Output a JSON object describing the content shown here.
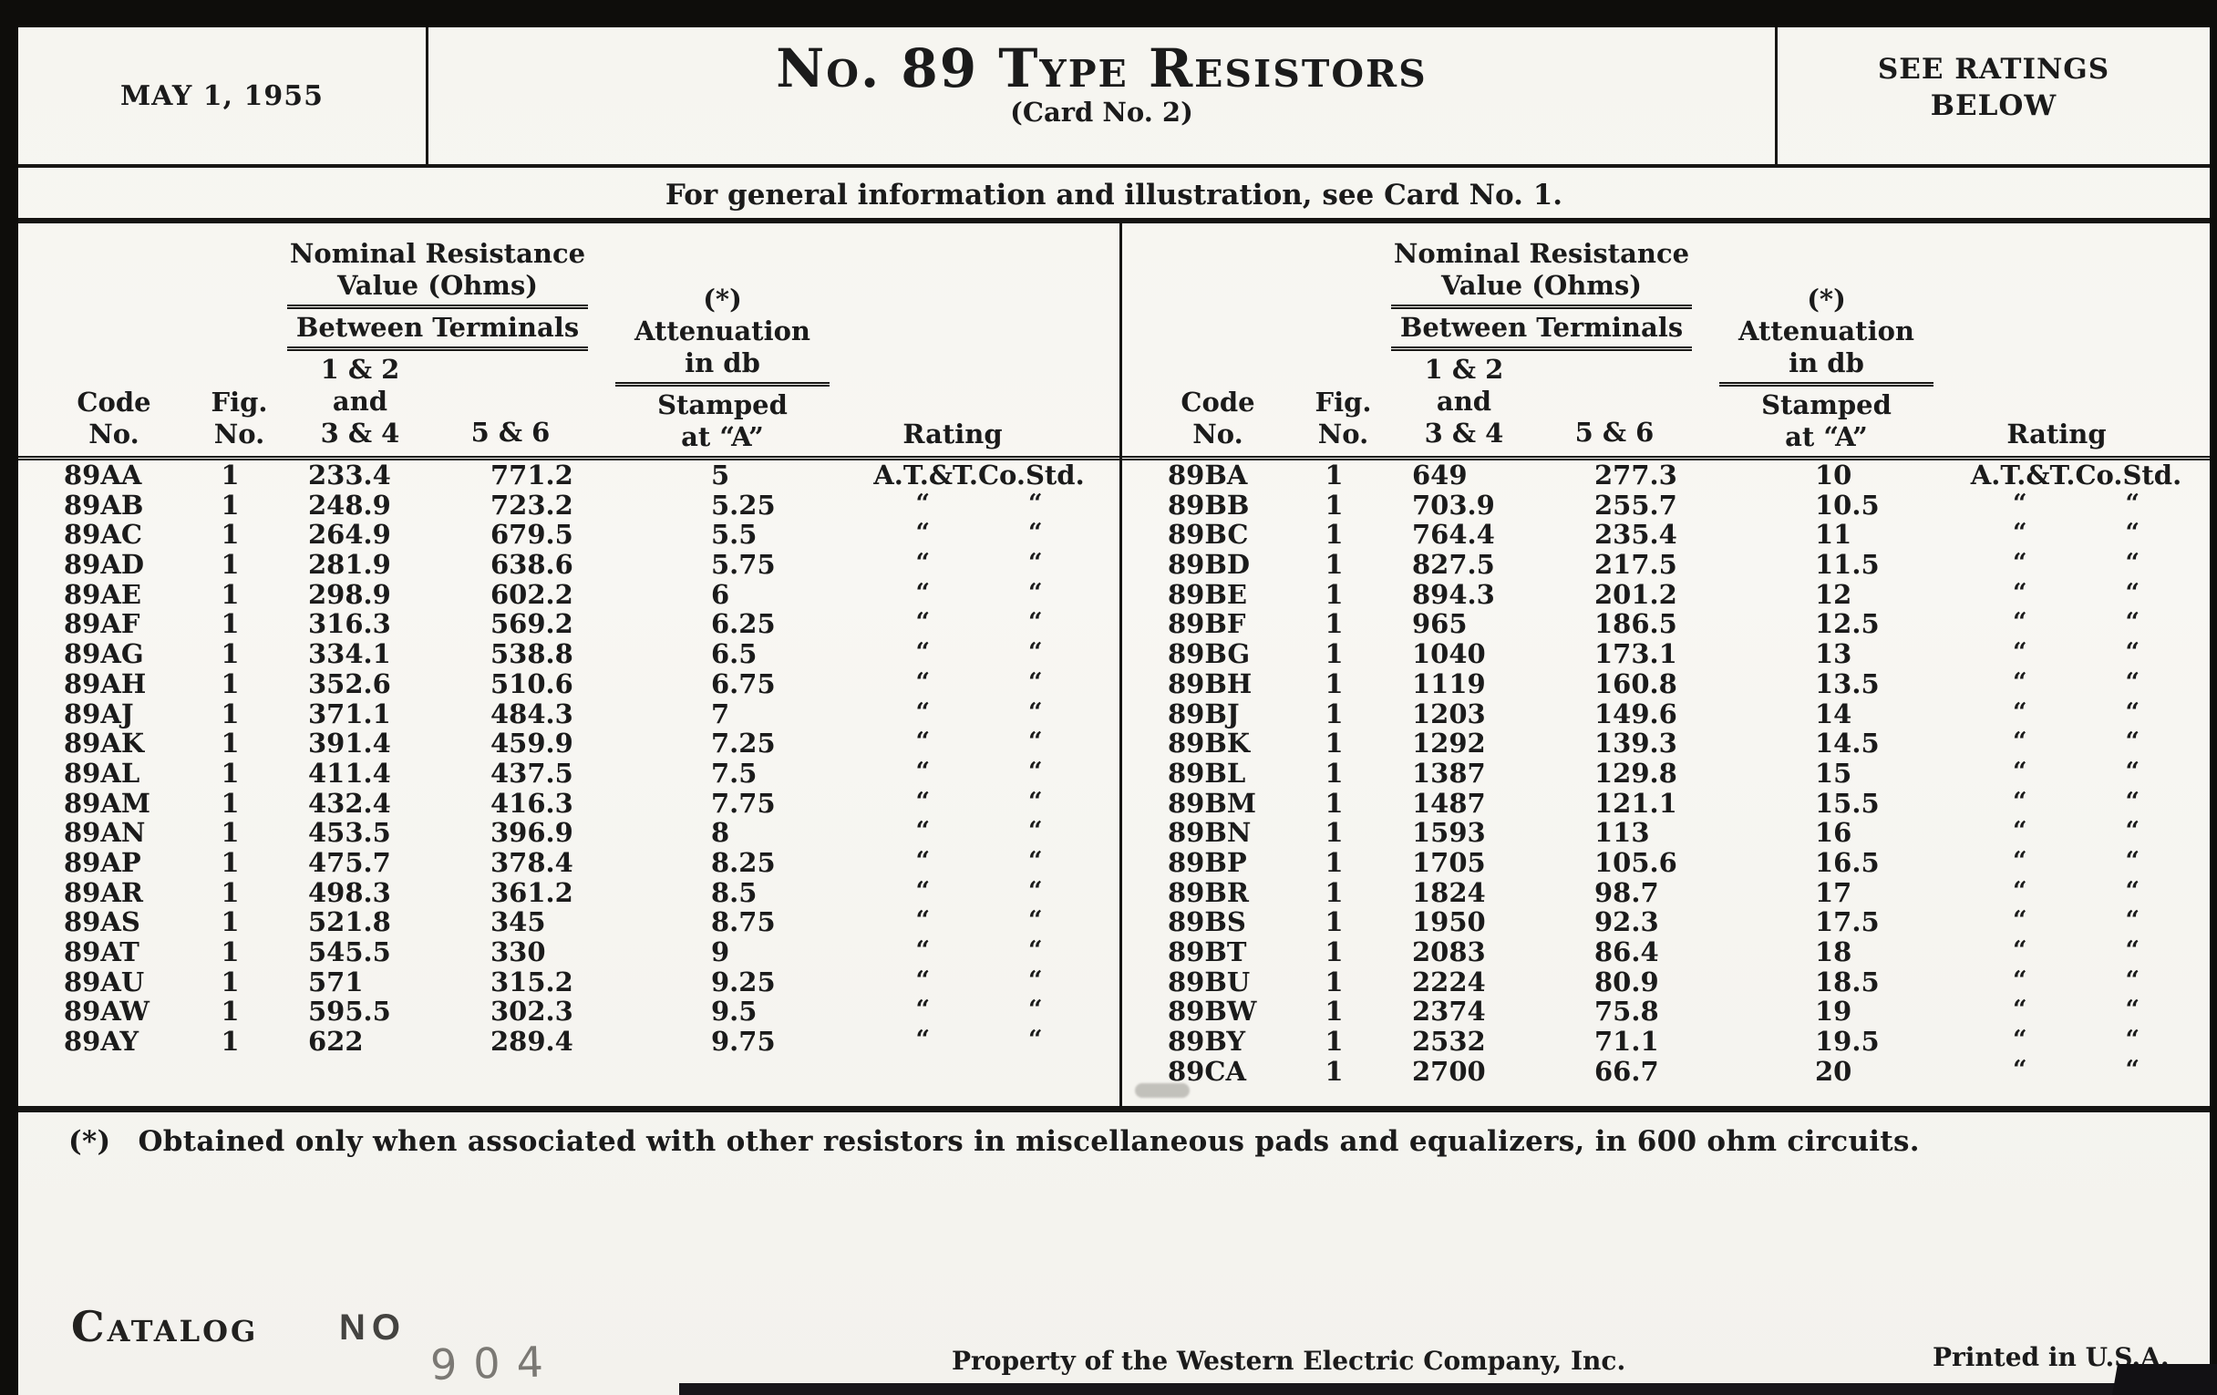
{
  "document": {
    "header": {
      "date": "MAY 1, 1955",
      "title": "No. 89 Type Resistors",
      "card_no": "(Card No. 2)",
      "ratings_note": [
        "SEE RATINGS",
        "BELOW"
      ],
      "subtitle": "For general information and illustration, see Card No. 1."
    },
    "table": {
      "headers": {
        "code": [
          "Code",
          "No."
        ],
        "fig": [
          "Fig.",
          "No."
        ],
        "nominal": [
          "Nominal Resistance",
          "Value (Ohms)"
        ],
        "between": "Between Terminals",
        "terminals_1": [
          "1 & 2",
          "and",
          "3 & 4"
        ],
        "terminals_2": "5 & 6",
        "star": "(*)",
        "attenuation": [
          "Attenuation",
          "in db"
        ],
        "stamped": [
          "Stamped",
          "at “A”"
        ],
        "rating": "Rating"
      },
      "ditto_mark": "“",
      "left_rows": [
        {
          "code": "89AA",
          "fig": "1",
          "r12_34": "233.4",
          "r56": "771.2",
          "atten_db": "5",
          "rating": "A.T.&T.Co.Std."
        },
        {
          "code": "89AB",
          "fig": "1",
          "r12_34": "248.9",
          "r56": "723.2",
          "atten_db": "5.25",
          "rating": "ditto"
        },
        {
          "code": "89AC",
          "fig": "1",
          "r12_34": "264.9",
          "r56": "679.5",
          "atten_db": "5.5",
          "rating": "ditto"
        },
        {
          "code": "89AD",
          "fig": "1",
          "r12_34": "281.9",
          "r56": "638.6",
          "atten_db": "5.75",
          "rating": "ditto"
        },
        {
          "code": "89AE",
          "fig": "1",
          "r12_34": "298.9",
          "r56": "602.2",
          "atten_db": "6",
          "rating": "ditto"
        },
        {
          "code": "89AF",
          "fig": "1",
          "r12_34": "316.3",
          "r56": "569.2",
          "atten_db": "6.25",
          "rating": "ditto"
        },
        {
          "code": "89AG",
          "fig": "1",
          "r12_34": "334.1",
          "r56": "538.8",
          "atten_db": "6.5",
          "rating": "ditto"
        },
        {
          "code": "89AH",
          "fig": "1",
          "r12_34": "352.6",
          "r56": "510.6",
          "atten_db": "6.75",
          "rating": "ditto"
        },
        {
          "code": "89AJ",
          "fig": "1",
          "r12_34": "371.1",
          "r56": "484.3",
          "atten_db": "7",
          "rating": "ditto"
        },
        {
          "code": "89AK",
          "fig": "1",
          "r12_34": "391.4",
          "r56": "459.9",
          "atten_db": "7.25",
          "rating": "ditto"
        },
        {
          "code": "89AL",
          "fig": "1",
          "r12_34": "411.4",
          "r56": "437.5",
          "atten_db": "7.5",
          "rating": "ditto"
        },
        {
          "code": "89AM",
          "fig": "1",
          "r12_34": "432.4",
          "r56": "416.3",
          "atten_db": "7.75",
          "rating": "ditto"
        },
        {
          "code": "89AN",
          "fig": "1",
          "r12_34": "453.5",
          "r56": "396.9",
          "atten_db": "8",
          "rating": "ditto"
        },
        {
          "code": "89AP",
          "fig": "1",
          "r12_34": "475.7",
          "r56": "378.4",
          "atten_db": "8.25",
          "rating": "ditto"
        },
        {
          "code": "89AR",
          "fig": "1",
          "r12_34": "498.3",
          "r56": "361.2",
          "atten_db": "8.5",
          "rating": "ditto"
        },
        {
          "code": "89AS",
          "fig": "1",
          "r12_34": "521.8",
          "r56": "345",
          "atten_db": "8.75",
          "rating": "ditto"
        },
        {
          "code": "89AT",
          "fig": "1",
          "r12_34": "545.5",
          "r56": "330",
          "atten_db": "9",
          "rating": "ditto"
        },
        {
          "code": "89AU",
          "fig": "1",
          "r12_34": "571",
          "r56": "315.2",
          "atten_db": "9.25",
          "rating": "ditto"
        },
        {
          "code": "89AW",
          "fig": "1",
          "r12_34": "595.5",
          "r56": "302.3",
          "atten_db": "9.5",
          "rating": "ditto"
        },
        {
          "code": "89AY",
          "fig": "1",
          "r12_34": "622",
          "r56": "289.4",
          "atten_db": "9.75",
          "rating": "ditto"
        }
      ],
      "right_rows": [
        {
          "code": "89BA",
          "fig": "1",
          "r12_34": "649",
          "r56": "277.3",
          "atten_db": "10",
          "rating": "A.T.&T.Co.Std."
        },
        {
          "code": "89BB",
          "fig": "1",
          "r12_34": "703.9",
          "r56": "255.7",
          "atten_db": "10.5",
          "rating": "ditto"
        },
        {
          "code": "89BC",
          "fig": "1",
          "r12_34": "764.4",
          "r56": "235.4",
          "atten_db": "11",
          "rating": "ditto"
        },
        {
          "code": "89BD",
          "fig": "1",
          "r12_34": "827.5",
          "r56": "217.5",
          "atten_db": "11.5",
          "rating": "ditto"
        },
        {
          "code": "89BE",
          "fig": "1",
          "r12_34": "894.3",
          "r56": "201.2",
          "atten_db": "12",
          "rating": "ditto"
        },
        {
          "code": "89BF",
          "fig": "1",
          "r12_34": "965",
          "r56": "186.5",
          "atten_db": "12.5",
          "rating": "ditto"
        },
        {
          "code": "89BG",
          "fig": "1",
          "r12_34": "1040",
          "r56": "173.1",
          "atten_db": "13",
          "rating": "ditto"
        },
        {
          "code": "89BH",
          "fig": "1",
          "r12_34": "1119",
          "r56": "160.8",
          "atten_db": "13.5",
          "rating": "ditto"
        },
        {
          "code": "89BJ",
          "fig": "1",
          "r12_34": "1203",
          "r56": "149.6",
          "atten_db": "14",
          "rating": "ditto"
        },
        {
          "code": "89BK",
          "fig": "1",
          "r12_34": "1292",
          "r56": "139.3",
          "atten_db": "14.5",
          "rating": "ditto"
        },
        {
          "code": "89BL",
          "fig": "1",
          "r12_34": "1387",
          "r56": "129.8",
          "atten_db": "15",
          "rating": "ditto"
        },
        {
          "code": "89BM",
          "fig": "1",
          "r12_34": "1487",
          "r56": "121.1",
          "atten_db": "15.5",
          "rating": "ditto"
        },
        {
          "code": "89BN",
          "fig": "1",
          "r12_34": "1593",
          "r56": "113",
          "atten_db": "16",
          "rating": "ditto"
        },
        {
          "code": "89BP",
          "fig": "1",
          "r12_34": "1705",
          "r56": "105.6",
          "atten_db": "16.5",
          "rating": "ditto"
        },
        {
          "code": "89BR",
          "fig": "1",
          "r12_34": "1824",
          "r56": "98.7",
          "atten_db": "17",
          "rating": "ditto"
        },
        {
          "code": "89BS",
          "fig": "1",
          "r12_34": "1950",
          "r56": "92.3",
          "atten_db": "17.5",
          "rating": "ditto"
        },
        {
          "code": "89BT",
          "fig": "1",
          "r12_34": "2083",
          "r56": "86.4",
          "atten_db": "18",
          "rating": "ditto"
        },
        {
          "code": "89BU",
          "fig": "1",
          "r12_34": "2224",
          "r56": "80.9",
          "atten_db": "18.5",
          "rating": "ditto"
        },
        {
          "code": "89BW",
          "fig": "1",
          "r12_34": "2374",
          "r56": "75.8",
          "atten_db": "19",
          "rating": "ditto"
        },
        {
          "code": "89BY",
          "fig": "1",
          "r12_34": "2532",
          "r56": "71.1",
          "atten_db": "19.5",
          "rating": "ditto"
        },
        {
          "code": "89CA",
          "fig": "1",
          "r12_34": "2700",
          "r56": "66.7",
          "atten_db": "20",
          "rating": "ditto"
        }
      ]
    },
    "footnote": {
      "star": "(*)",
      "text": "Obtained only when associated with other resistors in miscellaneous pads and equalizers, in 600 ohm circuits."
    },
    "footer": {
      "catalog_label": "Catalog",
      "catalog_no_stamp": "NO",
      "stamp_number": "904",
      "property_line": "Property of the Western Electric Company, Inc.",
      "printed_line": "Printed in U.S.A."
    }
  }
}
